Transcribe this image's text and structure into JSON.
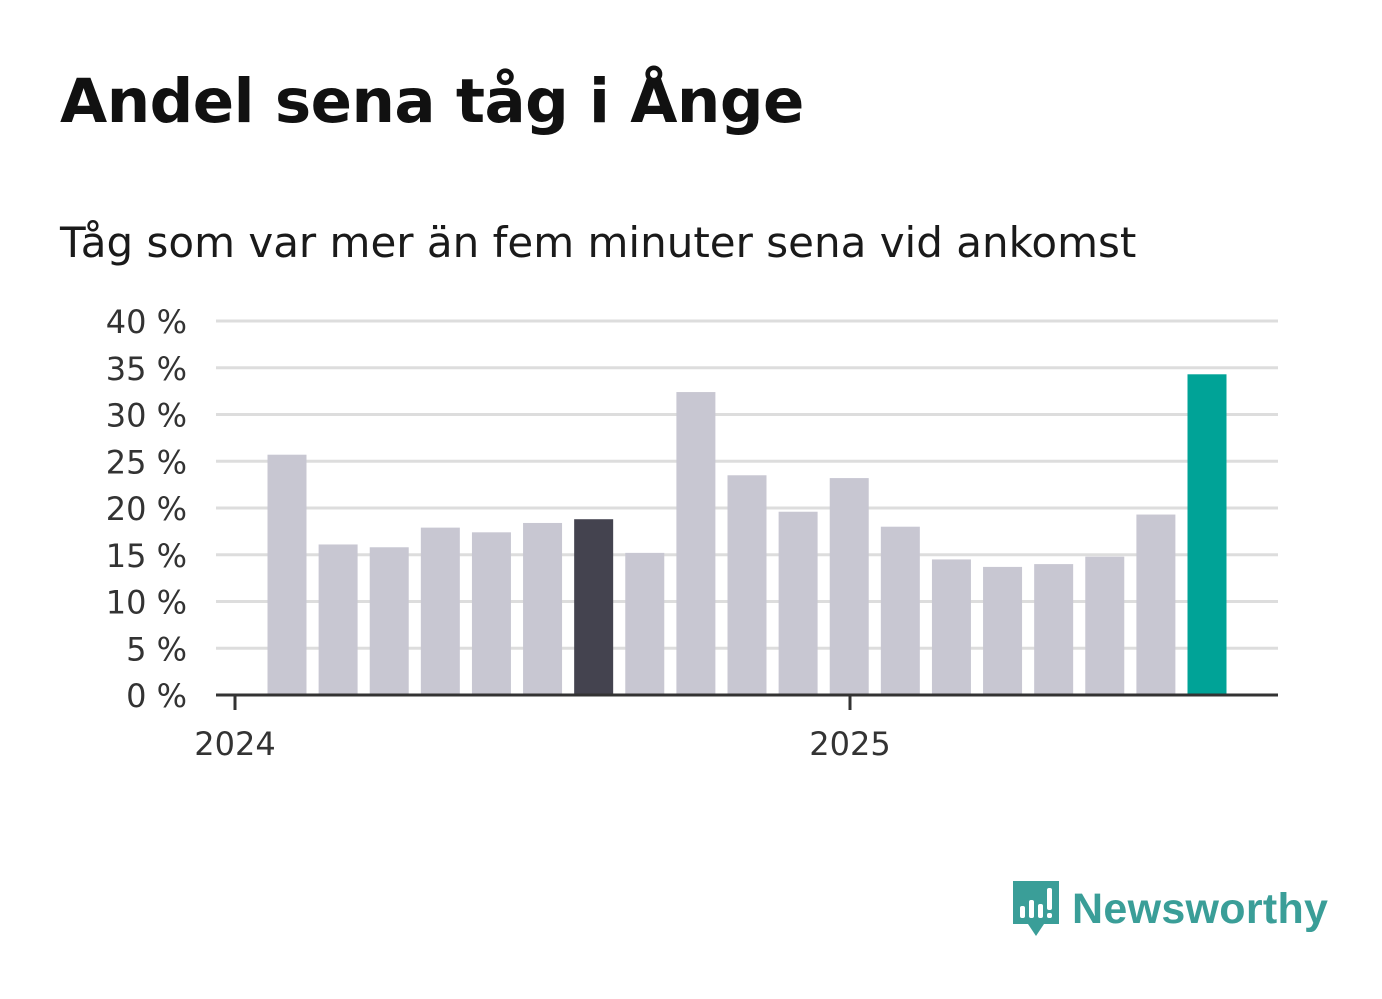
{
  "title": "Andel sena tåg i Ånge",
  "subtitle": "Tåg som var mer än fem minuter sena vid ankomst",
  "brand": {
    "name": "Newsworthy",
    "icon": "newsworthy-logo-icon",
    "color": "#3a9e98"
  },
  "colors": {
    "default_bar": "#c8c7d2",
    "highlight_bar": "#44434f",
    "latest_bar": "#00a397",
    "grid": "#dddddd",
    "axis": "#333333"
  },
  "chart_data": {
    "type": "bar",
    "title": "Andel sena tåg i Ånge",
    "subtitle": "Tåg som var mer än fem minuter sena vid ankomst",
    "xlabel": "",
    "ylabel": "",
    "x_tick_labels": [
      "2024",
      "2025"
    ],
    "y_tick_labels": [
      "0 %",
      "5 %",
      "10 %",
      "15 %",
      "20 %",
      "25 %",
      "30 %",
      "35 %",
      "40 %"
    ],
    "ylim": [
      0,
      40
    ],
    "grid": true,
    "values": [
      25.7,
      16.1,
      15.8,
      17.9,
      17.4,
      18.4,
      18.8,
      15.2,
      32.4,
      23.5,
      19.6,
      23.2,
      18.0,
      14.5,
      13.7,
      14.0,
      14.8,
      19.3,
      34.3
    ],
    "highlight_index": 6,
    "latest_index": 18
  }
}
